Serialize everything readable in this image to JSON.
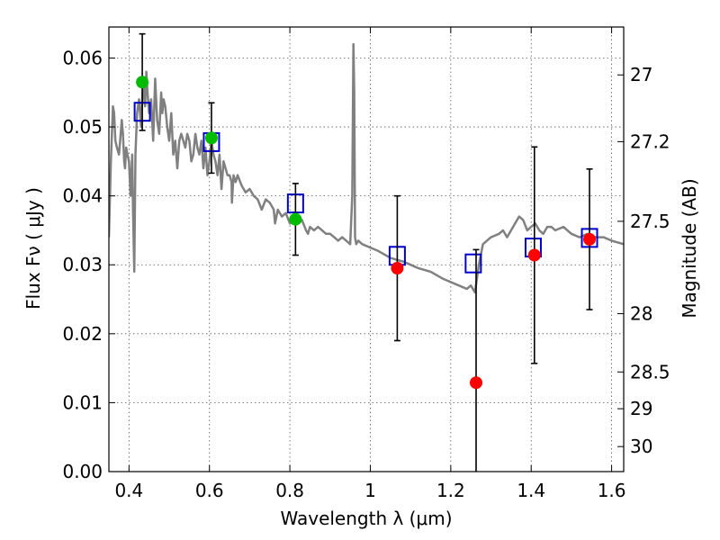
{
  "chart_data": {
    "type": "scatter",
    "xlabel": "Wavelength  λ (μm)",
    "ylabel": "Flux  Fν  ( μJy )",
    "y2label": "Magnitude (AB)",
    "xlim": [
      0.35,
      1.63
    ],
    "ylim": [
      0.0,
      0.0645
    ],
    "grid": true,
    "x_ticks": [
      0.4,
      0.6,
      0.8,
      1,
      1.2,
      1.4,
      1.6
    ],
    "x_tick_labels": [
      "0.4",
      "0.6",
      "0.8",
      "1",
      "1.2",
      "1.4",
      "1.6"
    ],
    "y_ticks": [
      0.0,
      0.01,
      0.02,
      0.03,
      0.04,
      0.05,
      0.06
    ],
    "y_tick_labels": [
      "0.00",
      "0.01",
      "0.02",
      "0.03",
      "0.04",
      "0.05",
      "0.06"
    ],
    "y2_ticks": [
      27,
      27.2,
      27.5,
      28,
      28.5,
      29,
      30
    ],
    "y2_tick_labels": [
      "27",
      "27.2",
      "27.5",
      "28",
      "28.5",
      "29",
      "30"
    ],
    "colors": {
      "template": "#808080",
      "model_marker": "#0000cc",
      "detection": "#00bb00",
      "nondetection": "#ff0000",
      "errorbar": "#000000",
      "grid": "#555555"
    },
    "series": [
      {
        "type": "line",
        "x": [
          0.35,
          0.355,
          0.36,
          0.363,
          0.366,
          0.37,
          0.375,
          0.378,
          0.382,
          0.385,
          0.388,
          0.39,
          0.393,
          0.396,
          0.4,
          0.404,
          0.408,
          0.41,
          0.413,
          0.416,
          0.42,
          0.425,
          0.43,
          0.435,
          0.44,
          0.443,
          0.446,
          0.45,
          0.455,
          0.46,
          0.465,
          0.47,
          0.475,
          0.48,
          0.483,
          0.486,
          0.49,
          0.495,
          0.5,
          0.505,
          0.51,
          0.515,
          0.52,
          0.525,
          0.53,
          0.535,
          0.54,
          0.545,
          0.55,
          0.555,
          0.56,
          0.565,
          0.57,
          0.575,
          0.58,
          0.585,
          0.59,
          0.595,
          0.6,
          0.605,
          0.61,
          0.615,
          0.62,
          0.625,
          0.63,
          0.635,
          0.64,
          0.645,
          0.65,
          0.655,
          0.656,
          0.66,
          0.665,
          0.67,
          0.68,
          0.69,
          0.7,
          0.71,
          0.72,
          0.73,
          0.74,
          0.75,
          0.76,
          0.763,
          0.77,
          0.78,
          0.79,
          0.8,
          0.81,
          0.82,
          0.83,
          0.84,
          0.845,
          0.85,
          0.86,
          0.87,
          0.88,
          0.89,
          0.9,
          0.91,
          0.92,
          0.93,
          0.94,
          0.95,
          0.955,
          0.958,
          0.96,
          0.962,
          0.965,
          0.97,
          0.98,
          1.0,
          1.02,
          1.05,
          1.08,
          1.1,
          1.12,
          1.15,
          1.18,
          1.2,
          1.22,
          1.24,
          1.25,
          1.26,
          1.27,
          1.28,
          1.3,
          1.32,
          1.33,
          1.34,
          1.35,
          1.36,
          1.37,
          1.38,
          1.39,
          1.4,
          1.41,
          1.42,
          1.43,
          1.44,
          1.45,
          1.46,
          1.48,
          1.5,
          1.52,
          1.54,
          1.56,
          1.58,
          1.6,
          1.63
        ],
        "y": [
          0.034,
          0.045,
          0.053,
          0.052,
          0.048,
          0.047,
          0.046,
          0.048,
          0.051,
          0.049,
          0.045,
          0.044,
          0.047,
          0.046,
          0.045,
          0.04,
          0.046,
          0.038,
          0.029,
          0.046,
          0.052,
          0.054,
          0.05,
          0.057,
          0.053,
          0.058,
          0.055,
          0.052,
          0.054,
          0.048,
          0.057,
          0.051,
          0.049,
          0.055,
          0.052,
          0.054,
          0.053,
          0.05,
          0.048,
          0.052,
          0.046,
          0.048,
          0.044,
          0.048,
          0.049,
          0.048,
          0.047,
          0.049,
          0.048,
          0.045,
          0.046,
          0.049,
          0.047,
          0.046,
          0.048,
          0.044,
          0.047,
          0.043,
          0.045,
          0.048,
          0.046,
          0.045,
          0.043,
          0.046,
          0.041,
          0.045,
          0.044,
          0.043,
          0.043,
          0.042,
          0.039,
          0.043,
          0.042,
          0.043,
          0.0415,
          0.0405,
          0.041,
          0.04,
          0.0395,
          0.038,
          0.0395,
          0.039,
          0.038,
          0.036,
          0.038,
          0.037,
          0.0375,
          0.036,
          0.037,
          0.036,
          0.0365,
          0.035,
          0.0345,
          0.0355,
          0.035,
          0.0355,
          0.035,
          0.0345,
          0.0345,
          0.034,
          0.0335,
          0.034,
          0.0335,
          0.033,
          0.04,
          0.062,
          0.055,
          0.034,
          0.033,
          0.0335,
          0.033,
          0.0325,
          0.032,
          0.031,
          0.0305,
          0.03,
          0.0295,
          0.029,
          0.028,
          0.0275,
          0.027,
          0.0265,
          0.027,
          0.026,
          0.03,
          0.033,
          0.034,
          0.0345,
          0.035,
          0.034,
          0.035,
          0.036,
          0.037,
          0.0365,
          0.035,
          0.0355,
          0.036,
          0.035,
          0.0345,
          0.0355,
          0.0355,
          0.035,
          0.0355,
          0.0345,
          0.034,
          0.0345,
          0.034,
          0.034,
          0.0335,
          0.033
        ]
      },
      {
        "type": "model-square",
        "x": [
          0.433,
          0.605,
          0.814,
          1.067,
          1.256,
          1.405,
          1.545
        ],
        "y": [
          0.0522,
          0.0478,
          0.0389,
          0.0313,
          0.0302,
          0.0325,
          0.0339
        ]
      },
      {
        "type": "observed-detection",
        "x": [
          0.433,
          0.605,
          0.814
        ],
        "y": [
          0.0565,
          0.0484,
          0.0366
        ],
        "err": [
          0.007,
          0.0051,
          0.0052
        ]
      },
      {
        "type": "observed-nondetection",
        "x": [
          1.067,
          1.263,
          1.408,
          1.545
        ],
        "y": [
          0.0295,
          0.0129,
          0.0314,
          0.0337
        ],
        "err": [
          0.0105,
          0.0193,
          0.0157,
          0.0102
        ]
      }
    ]
  }
}
